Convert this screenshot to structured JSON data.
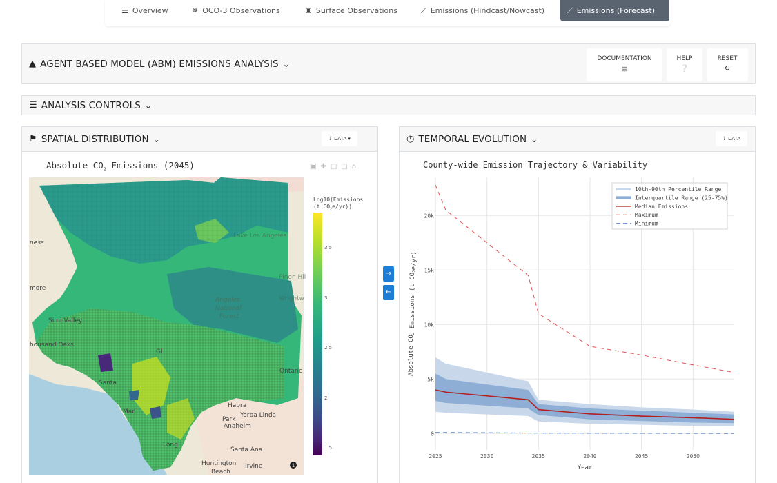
{
  "nav": {
    "tabs": [
      {
        "label": "Overview",
        "icon": "list-icon",
        "glyph": "☰"
      },
      {
        "label": "OCO-3 Observations",
        "icon": "satellite-icon",
        "glyph": "✵"
      },
      {
        "label": "Surface Observations",
        "icon": "tower-icon",
        "glyph": "♜"
      },
      {
        "label": "Emissions (Hindcast/Nowcast)",
        "icon": "line-chart-icon",
        "glyph": "⟋"
      },
      {
        "label": "Emissions (Forecast)",
        "icon": "line-chart-icon",
        "glyph": "⟋"
      }
    ],
    "active_index": 4
  },
  "header": {
    "title": "AGENT BASED MODEL (ABM) EMISSIONS ANALYSIS",
    "buttons": {
      "documentation": "DOCUMENTATION",
      "help": "HELP",
      "reset": "RESET"
    }
  },
  "controls": {
    "title": "ANALYSIS CONTROLS"
  },
  "spatial": {
    "title": "SPATIAL DISTRIBUTION",
    "data_button": "DATA",
    "plot_title_pre": "Absolute CO",
    "plot_title_sub": "2",
    "plot_title_post": " Emissions (2045)",
    "colorbar_title_line1": "Log10(Emissions",
    "colorbar_title_line2": "(t CO",
    "colorbar_title_sub": "2",
    "colorbar_title_line2_end": "e/yr))",
    "colorbar_ticks": [
      "3.5",
      "3",
      "2.5",
      "2",
      "1.5"
    ],
    "colors": {
      "low": "#440154",
      "mid": "#21918c",
      "high": "#fde725"
    },
    "map_labels": [
      "ness",
      "more",
      "Simi Valley",
      "housand Oaks",
      "Santa",
      "Mar",
      "Long",
      "Huntington",
      "Beach",
      "Santa Ana",
      "Irvine",
      "Anaheim",
      "Yorba Linda",
      "Habra",
      "Park",
      "Ontaric",
      "Pinon Hil",
      "Wrightw",
      "Angeles",
      "National",
      "Forest",
      "Lake Los Angeles",
      "GI"
    ]
  },
  "temporal": {
    "title": "TEMPORAL EVOLUTION",
    "data_button": "DATA",
    "plot_title": "County-wide Emission Trajectory & Variability"
  },
  "chart_data": {
    "type": "line",
    "title": "County-wide Emission Trajectory & Variability",
    "xlabel": "Year",
    "ylabel_pre": "Absolute CO",
    "ylabel_sub": "2",
    "ylabel_post": " Emissions (t CO",
    "ylabel_sub2": "2",
    "ylabel_end": "e/yr)",
    "xlim": [
      2025,
      2054
    ],
    "ylim": [
      -1500,
      23500
    ],
    "x_ticks": [
      2025,
      2030,
      2035,
      2040,
      2045,
      2050
    ],
    "y_ticks": [
      0,
      5000,
      10000,
      15000,
      20000
    ],
    "y_tick_labels": [
      "0",
      "5k",
      "10k",
      "15k",
      "20k"
    ],
    "x": [
      2025,
      2026,
      2034,
      2035,
      2040,
      2045,
      2050,
      2054
    ],
    "series": [
      {
        "name": "10th-90th Percentile Range",
        "type": "band",
        "color": "#c8d8ea",
        "lower": [
          2000,
          1900,
          1600,
          1100,
          900,
          800,
          700,
          650
        ],
        "upper": [
          7000,
          6400,
          4800,
          3100,
          2700,
          2400,
          2200,
          2000
        ]
      },
      {
        "name": "Interquartile Range (25-75%)",
        "type": "band",
        "color": "#8eaed6",
        "lower": [
          3000,
          2800,
          2300,
          1700,
          1300,
          1150,
          1000,
          950
        ],
        "upper": [
          5500,
          5000,
          4000,
          2700,
          2300,
          2100,
          1900,
          1750
        ]
      },
      {
        "name": "Median Emissions",
        "type": "line",
        "color": "#b21f1f",
        "values": [
          4000,
          3800,
          3100,
          2200,
          1800,
          1600,
          1450,
          1300
        ]
      },
      {
        "name": "Maximum",
        "type": "dashed",
        "color": "#e05555",
        "values": [
          22800,
          20500,
          14500,
          11000,
          8000,
          7200,
          6300,
          5600
        ]
      },
      {
        "name": "Minimum",
        "type": "dashed",
        "color": "#5a86c8",
        "values": [
          100,
          100,
          50,
          40,
          30,
          20,
          10,
          5
        ]
      }
    ]
  }
}
